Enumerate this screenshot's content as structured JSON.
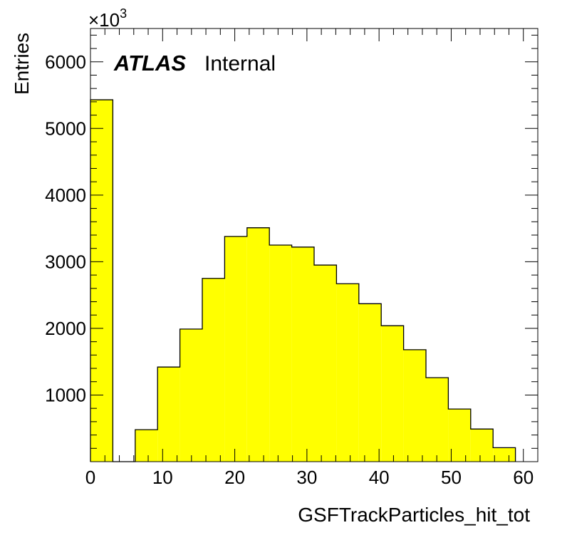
{
  "chart_data": {
    "type": "bar",
    "title": "",
    "xlabel": "GSFTrackParticles_hit_tot",
    "ylabel": "Entries",
    "y_multiplier": "×10",
    "y_multiplier_exp": "3",
    "atlas_label": "ATLAS",
    "atlas_sublabel": "Internal",
    "bar_color": "#ffff00",
    "edge_color": "#000000",
    "xlim": [
      0,
      62
    ],
    "ylim": [
      0,
      6500
    ],
    "x_ticks": [
      0,
      10,
      20,
      30,
      40,
      50,
      60
    ],
    "x_tick_labels": [
      "0",
      "10",
      "20",
      "30",
      "40",
      "50",
      "60"
    ],
    "y_ticks": [
      1000,
      2000,
      3000,
      4000,
      5000,
      6000
    ],
    "y_tick_labels": [
      "1000",
      "2000",
      "3000",
      "4000",
      "5000",
      "6000"
    ],
    "grid": false,
    "bins": [
      {
        "x0": 0,
        "x1": 3.1,
        "value": 5430
      },
      {
        "x0": 3.1,
        "x1": 6.2,
        "value": 0
      },
      {
        "x0": 6.2,
        "x1": 9.3,
        "value": 480
      },
      {
        "x0": 9.3,
        "x1": 12.4,
        "value": 1420
      },
      {
        "x0": 12.4,
        "x1": 15.5,
        "value": 1990
      },
      {
        "x0": 15.5,
        "x1": 18.6,
        "value": 2750
      },
      {
        "x0": 18.6,
        "x1": 21.7,
        "value": 3380
      },
      {
        "x0": 21.7,
        "x1": 24.8,
        "value": 3510
      },
      {
        "x0": 24.8,
        "x1": 27.9,
        "value": 3250
      },
      {
        "x0": 27.9,
        "x1": 31.0,
        "value": 3220
      },
      {
        "x0": 31.0,
        "x1": 34.1,
        "value": 2950
      },
      {
        "x0": 34.1,
        "x1": 37.2,
        "value": 2670
      },
      {
        "x0": 37.2,
        "x1": 40.3,
        "value": 2370
      },
      {
        "x0": 40.3,
        "x1": 43.4,
        "value": 2040
      },
      {
        "x0": 43.4,
        "x1": 46.5,
        "value": 1680
      },
      {
        "x0": 46.5,
        "x1": 49.6,
        "value": 1260
      },
      {
        "x0": 49.6,
        "x1": 52.7,
        "value": 790
      },
      {
        "x0": 52.7,
        "x1": 55.8,
        "value": 490
      },
      {
        "x0": 55.8,
        "x1": 58.9,
        "value": 210
      }
    ]
  }
}
